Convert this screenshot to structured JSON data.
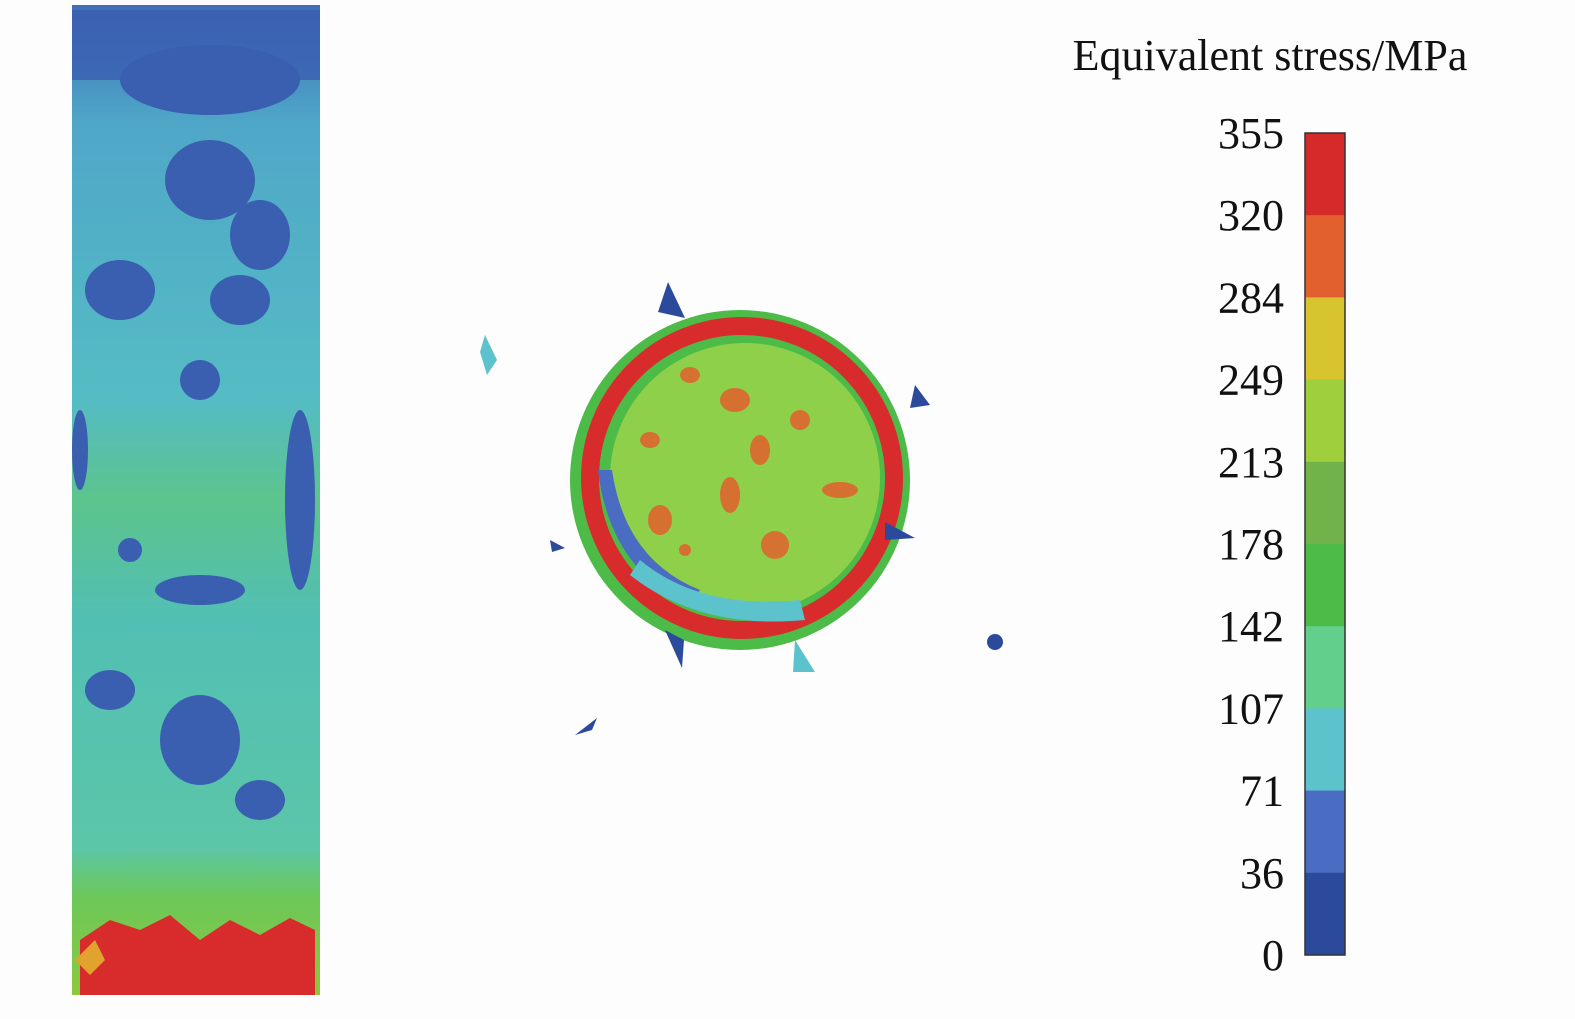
{
  "legend": {
    "title": "Equivalent stress/MPa",
    "labels": [
      355,
      320,
      284,
      249,
      213,
      178,
      142,
      107,
      71,
      36,
      0
    ],
    "colors": [
      "#d42a2a",
      "#e2602d",
      "#d8c42e",
      "#a0cf3e",
      "#72b24a",
      "#4dbb47",
      "#62d08c",
      "#5cc2cc",
      "#4a6cc2",
      "#2c4a9c"
    ]
  }
}
